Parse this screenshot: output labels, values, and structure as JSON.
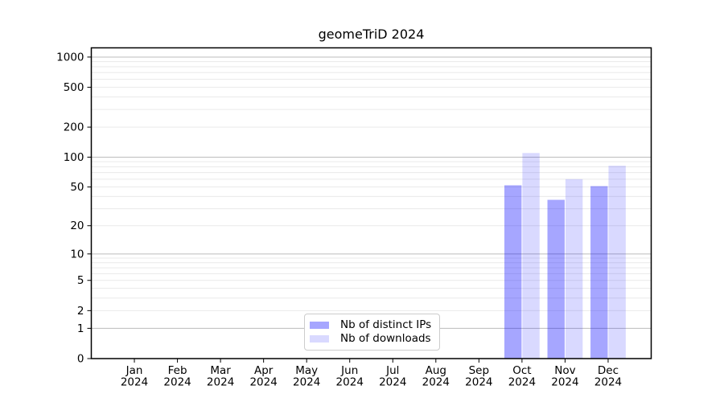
{
  "chart_data": {
    "type": "bar",
    "title": "geomeTriD 2024",
    "x_months": [
      "Jan",
      "Feb",
      "Mar",
      "Apr",
      "May",
      "Jun",
      "Jul",
      "Aug",
      "Sep",
      "Oct",
      "Nov",
      "Dec"
    ],
    "x_year": "2024",
    "series": [
      {
        "name": "Nb of distinct IPs",
        "color": "rgba(0,0,255,0.35)",
        "values": [
          0,
          0,
          0,
          0,
          0,
          0,
          0,
          0,
          0,
          52,
          37,
          51
        ]
      },
      {
        "name": "Nb of downloads",
        "color": "rgba(0,0,255,0.15)",
        "values": [
          0,
          0,
          0,
          0,
          0,
          0,
          0,
          0,
          0,
          110,
          60,
          82
        ]
      }
    ],
    "y_axis": {
      "scale": "log1p",
      "ticks": [
        0,
        1,
        2,
        5,
        10,
        20,
        50,
        100,
        200,
        500,
        1000
      ],
      "major_gridlines": [
        1,
        10,
        100,
        1000
      ],
      "ylim": [
        0,
        1240
      ],
      "grid": true
    },
    "legend": {
      "position": "lower center"
    },
    "colors": {
      "major_grid": "#bcbcbc",
      "minor_grid": "#eaeaea",
      "spine": "#000000",
      "text": "#000000",
      "background": "#ffffff"
    }
  }
}
